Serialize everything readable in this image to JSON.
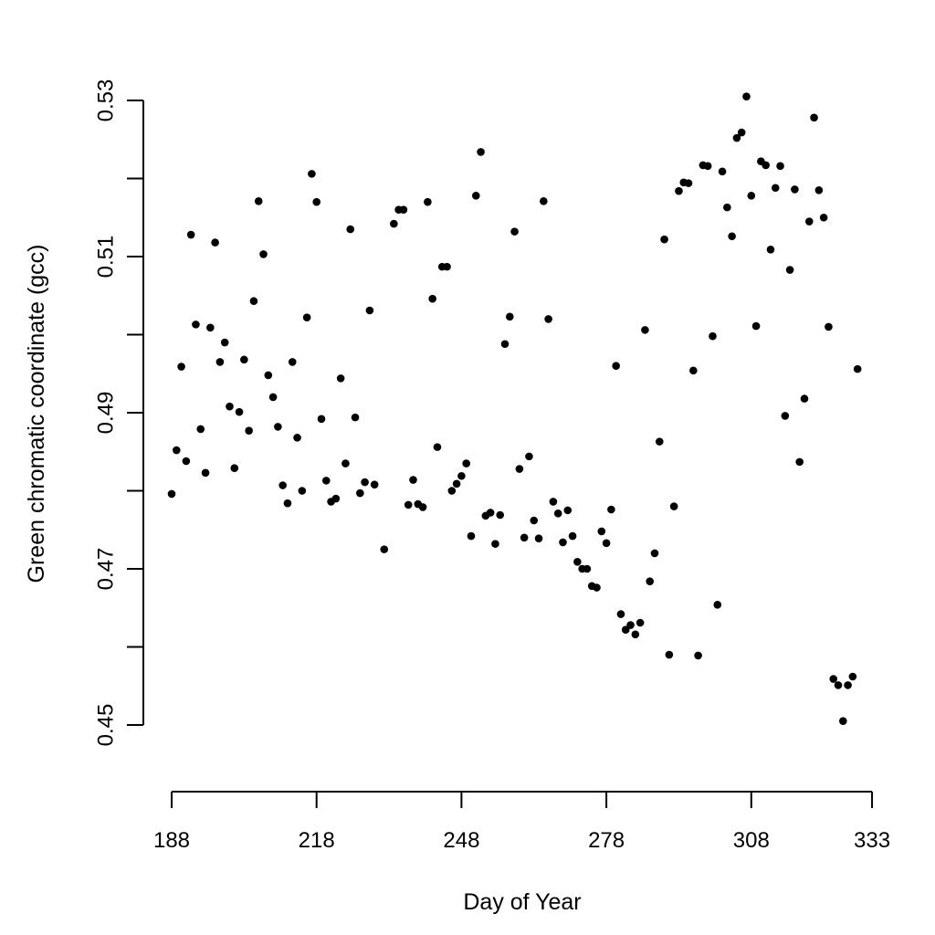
{
  "chart_data": {
    "type": "scatter",
    "title": "",
    "xlabel": "Day of Year",
    "ylabel": "Green chromatic coordinate (gcc)",
    "xlim": [
      188,
      333
    ],
    "ylim": [
      0.45,
      0.53
    ],
    "x_ticks": [
      188,
      218,
      248,
      278,
      308,
      333
    ],
    "y_ticks": [
      0.45,
      0.47,
      0.49,
      0.51,
      0.53
    ],
    "y_minor_ticks": [
      0.46,
      0.48,
      0.5,
      0.52
    ],
    "x_tick_labels": [
      "188",
      "218",
      "248",
      "278",
      "308",
      "333"
    ],
    "y_tick_labels": [
      "0.45",
      "0.47",
      "0.49",
      "0.51",
      "0.53"
    ],
    "grid": false,
    "legend": "none",
    "point_color": "#000000",
    "series": [
      {
        "x": [
          188,
          189,
          190,
          191,
          192,
          193,
          194,
          195,
          196,
          197,
          198,
          199,
          200,
          201,
          202,
          203,
          204,
          205,
          206,
          207,
          208,
          209,
          210,
          211,
          212,
          213,
          214,
          215,
          216,
          217,
          218,
          219,
          220,
          221,
          222,
          223,
          224,
          225,
          226,
          227,
          228,
          229,
          230,
          232,
          234,
          235,
          236,
          237,
          238,
          239,
          240,
          241,
          242,
          243,
          244,
          245,
          246,
          247,
          248,
          249,
          250,
          251,
          252,
          253,
          254,
          255,
          256,
          257,
          258,
          259,
          260,
          261,
          262,
          263,
          264,
          265,
          266,
          267,
          268,
          269,
          270,
          271,
          272,
          273,
          274,
          275,
          276,
          277,
          278,
          279,
          280,
          281,
          282,
          283,
          284,
          285,
          286,
          287,
          288,
          289,
          290,
          291,
          292,
          293,
          294,
          295,
          296,
          297,
          298,
          299,
          300,
          301,
          302,
          303,
          304,
          305,
          306,
          307,
          308,
          309,
          310,
          311,
          312,
          313,
          314,
          315,
          316,
          317,
          318,
          319,
          320,
          321,
          322,
          323,
          324,
          325,
          326,
          327,
          328,
          329,
          330
        ],
        "y": [
          0.4796,
          0.4852,
          0.4959,
          0.4838,
          0.5128,
          0.5013,
          0.4879,
          0.4823,
          0.5009,
          0.5118,
          0.4965,
          0.499,
          0.4908,
          0.4829,
          0.4901,
          0.4968,
          0.4877,
          0.5043,
          0.5171,
          0.5103,
          0.4948,
          0.492,
          0.4882,
          0.4807,
          0.4784,
          0.4965,
          0.4868,
          0.48,
          0.5022,
          0.5206,
          0.517,
          0.4892,
          0.4813,
          0.4786,
          0.479,
          0.4944,
          0.4835,
          0.5135,
          0.4894,
          0.4797,
          0.4811,
          0.5031,
          0.4808,
          0.4725,
          0.5142,
          0.516,
          0.516,
          0.4782,
          0.4814,
          0.4783,
          0.4779,
          0.517,
          0.5046,
          0.4856,
          0.5087,
          0.5087,
          0.48,
          0.4809,
          0.4819,
          0.4835,
          0.4742,
          0.5178,
          0.5234,
          0.4768,
          0.4772,
          0.4732,
          0.4769,
          0.4988,
          0.5023,
          0.5132,
          0.4828,
          0.474,
          0.4844,
          0.4762,
          0.4739,
          0.5171,
          0.502,
          0.4786,
          0.4771,
          0.4734,
          0.4775,
          0.4742,
          0.4709,
          0.47,
          0.47,
          0.4678,
          0.4676,
          0.4748,
          0.4733,
          0.4776,
          0.496,
          0.4642,
          0.4622,
          0.4628,
          0.4616,
          0.4631,
          0.5006,
          0.4684,
          0.472,
          0.4863,
          0.5122,
          0.459,
          0.478,
          0.5184,
          0.5195,
          0.5194,
          0.4954,
          0.4589,
          0.5217,
          0.5216,
          0.4998,
          0.4654,
          0.5209,
          0.5163,
          0.5126,
          0.5252,
          0.5259,
          0.5305,
          0.5178,
          0.5011,
          0.5222,
          0.5217,
          0.5109,
          0.5188,
          0.5216,
          0.4896,
          0.5083,
          0.5186,
          0.4837,
          0.4918,
          0.5145,
          0.5278,
          0.5185,
          0.515,
          0.501,
          0.4559,
          0.4551,
          0.4505,
          0.4551,
          0.4562,
          0.4956
        ]
      }
    ]
  }
}
